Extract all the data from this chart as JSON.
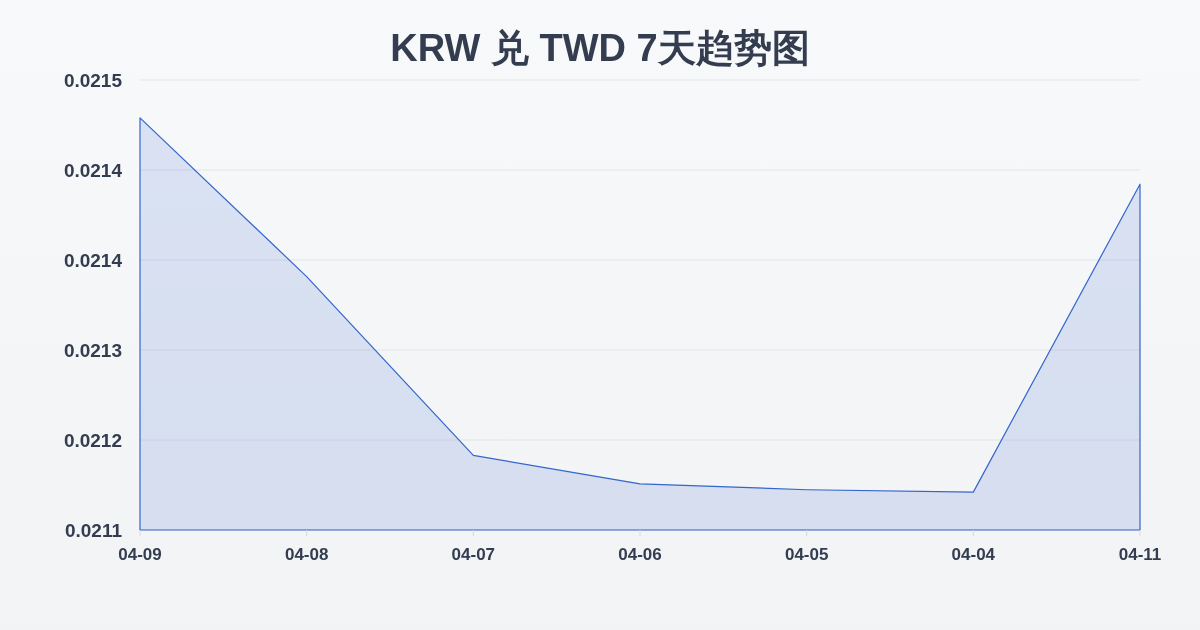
{
  "chart_data": {
    "type": "area",
    "title": "KRW 兑 TWD 7天趋势图",
    "categories": [
      "04-09",
      "04-08",
      "04-07",
      "04-06",
      "04-05",
      "04-04",
      "04-11"
    ],
    "values": [
      0.021478,
      0.021344,
      0.021193,
      0.021169,
      0.021164,
      0.021162,
      0.021422
    ],
    "color": "#3366cc",
    "ylim": [
      0.02113,
      0.02151
    ],
    "yticks": [
      {
        "value": 0.02113,
        "label": "0.0211"
      },
      {
        "value": 0.021206,
        "label": "0.0212"
      },
      {
        "value": 0.021282,
        "label": "0.0213"
      },
      {
        "value": 0.021358,
        "label": "0.0214"
      },
      {
        "value": 0.021434,
        "label": "0.0214"
      },
      {
        "value": 0.02151,
        "label": "0.0215"
      }
    ],
    "grid": "y"
  }
}
